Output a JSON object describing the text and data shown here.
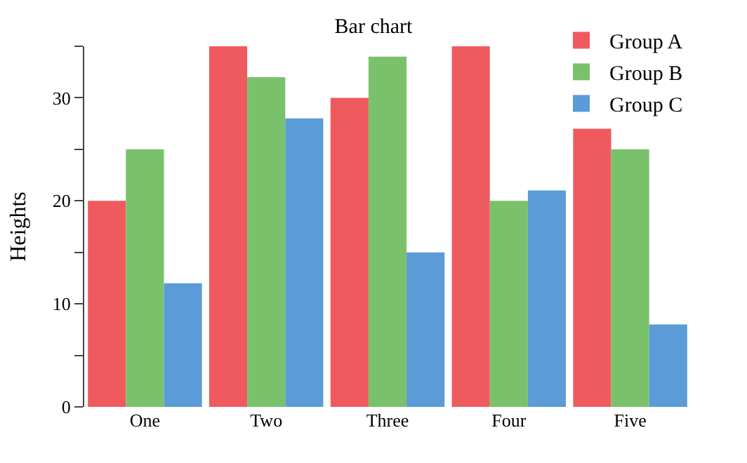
{
  "chart_data": {
    "type": "bar",
    "title": "Bar chart",
    "ylabel": "Heights",
    "categories": [
      "One",
      "Two",
      "Three",
      "Four",
      "Five"
    ],
    "series": [
      {
        "name": "Group A",
        "color": "#ef5a5f",
        "values": [
          20,
          35,
          30,
          35,
          27
        ]
      },
      {
        "name": "Group B",
        "color": "#79c26b",
        "values": [
          25,
          32,
          34,
          20,
          25
        ]
      },
      {
        "name": "Group C",
        "color": "#5b9bd8",
        "values": [
          12,
          28,
          15,
          21,
          8
        ]
      }
    ],
    "ylim": [
      0,
      35
    ],
    "yticks": [
      0,
      {
        "value": 5,
        "label": null
      },
      10,
      {
        "value": 15,
        "label": null
      },
      20,
      {
        "value": 25,
        "label": null
      },
      30,
      {
        "value": 35,
        "label": null
      }
    ],
    "grid": false,
    "legend": "top right"
  }
}
